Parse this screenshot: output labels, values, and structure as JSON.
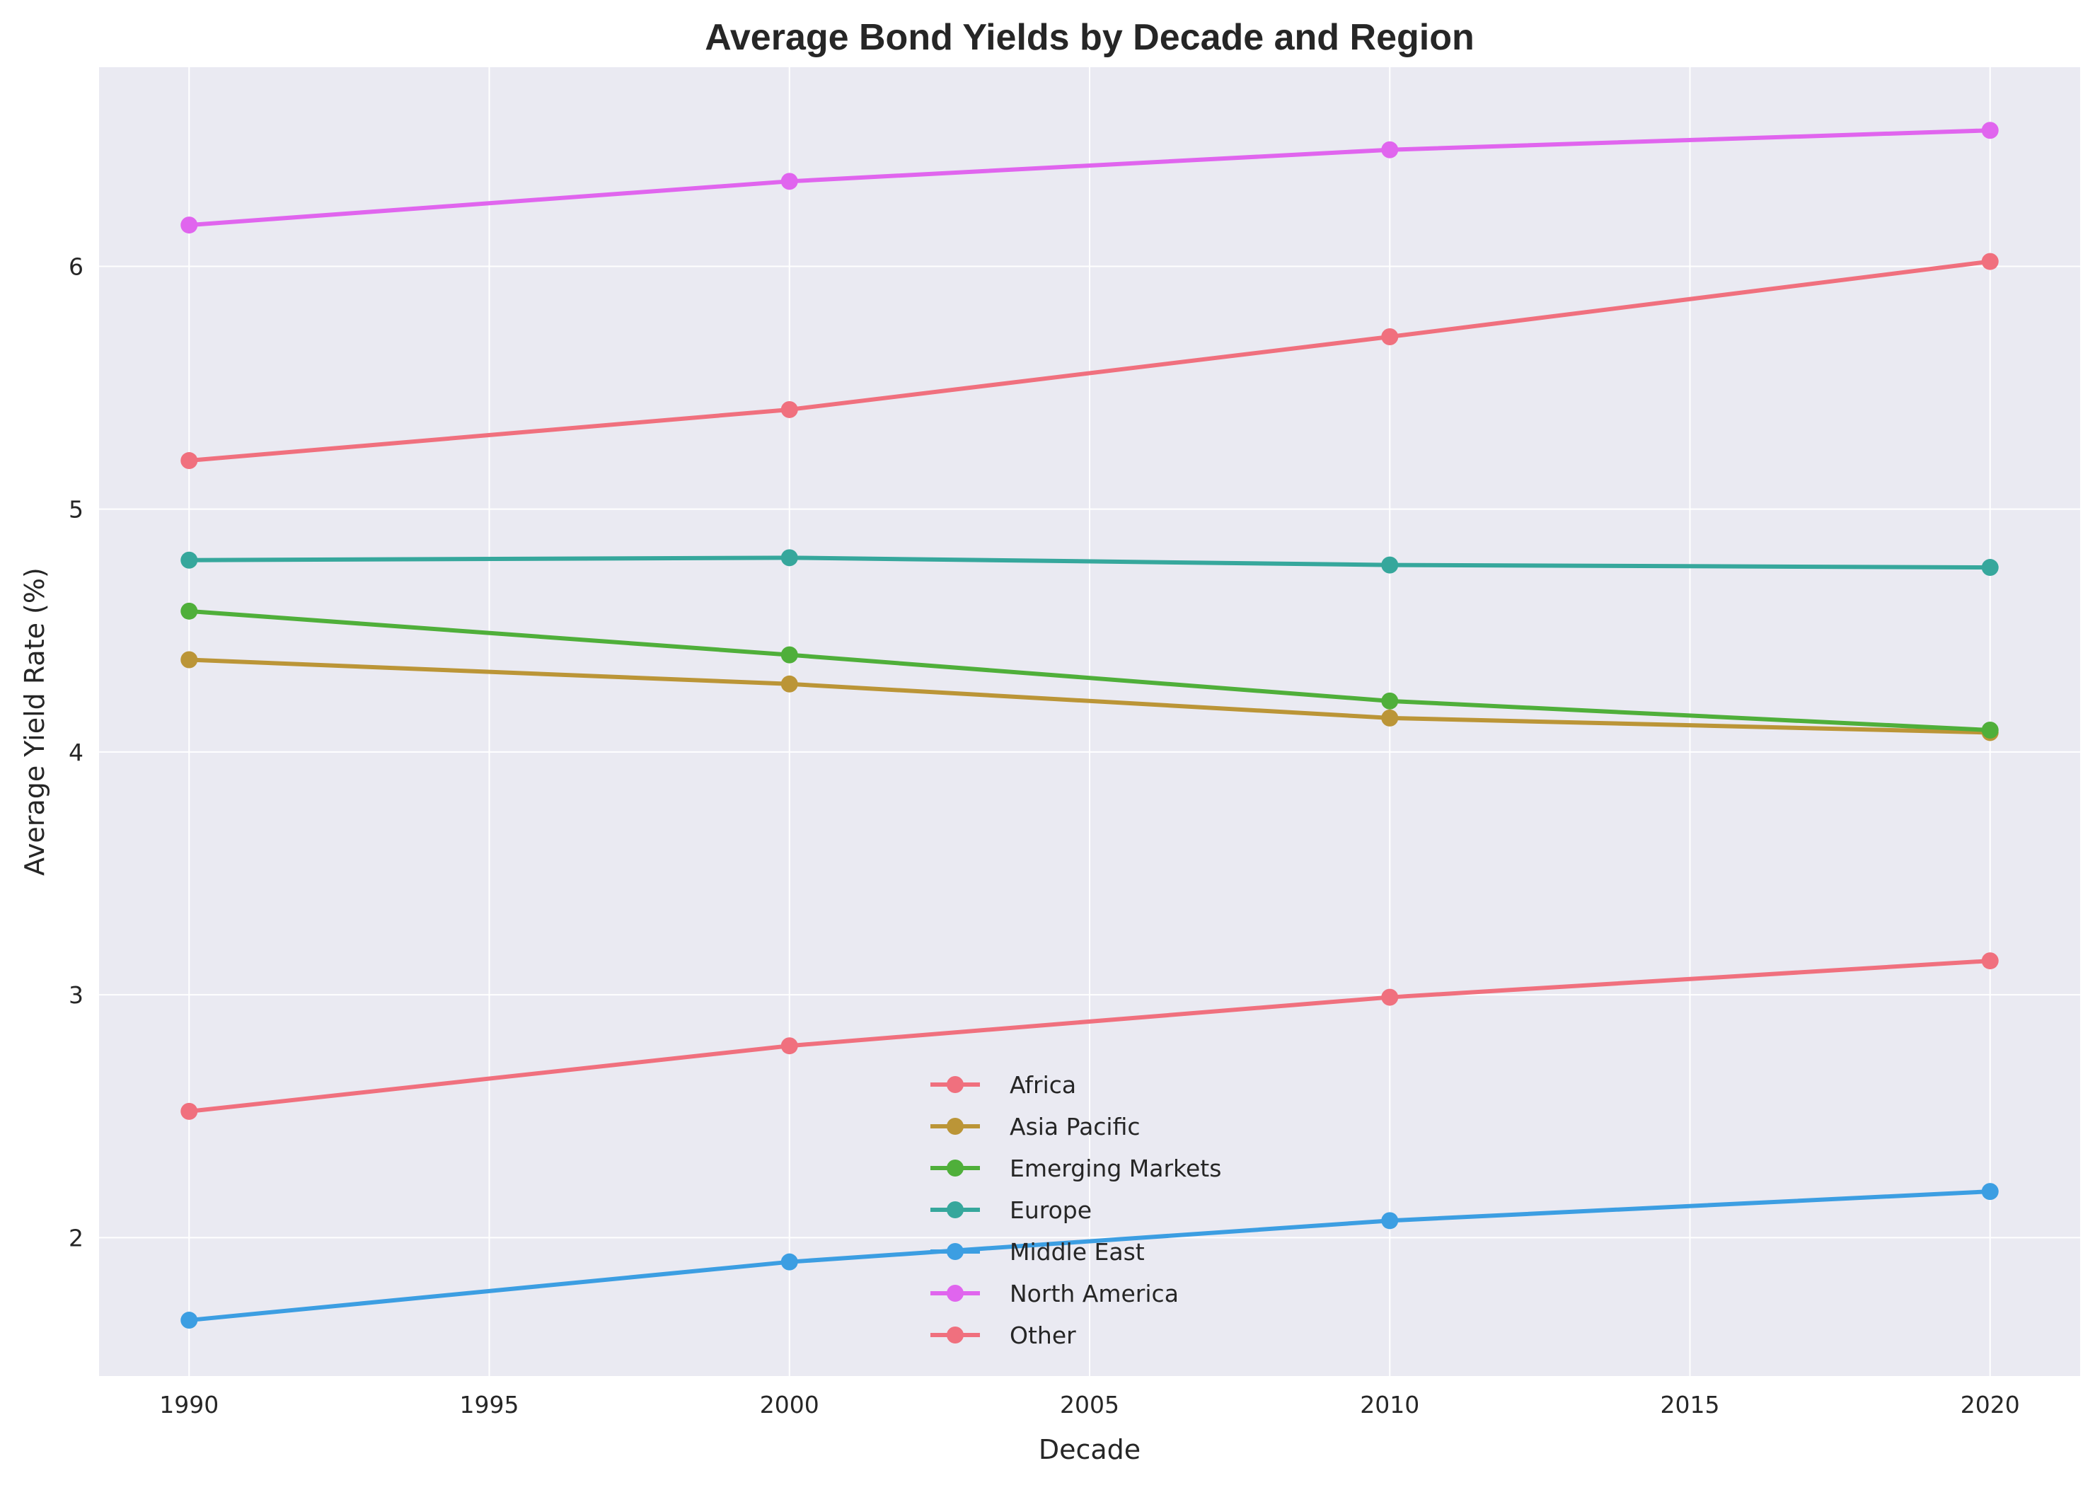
{
  "chart_data": {
    "type": "line",
    "title": "Average Bond Yields by Decade and Region",
    "xlabel": "Decade",
    "ylabel": "Average Yield Rate (%)",
    "x": [
      1990,
      2000,
      2010,
      2020
    ],
    "xlim": [
      1988.5,
      2021.5
    ],
    "ylim": [
      1.43,
      6.82
    ],
    "xticks": [
      1990,
      1995,
      2000,
      2005,
      2010,
      2015,
      2020
    ],
    "yticks": [
      2,
      3,
      4,
      5,
      6
    ],
    "grid": true,
    "legend_position": "bottom-center",
    "series": [
      {
        "name": "Africa",
        "color": "#f0707e",
        "values": [
          5.2,
          5.41,
          5.71,
          6.02
        ]
      },
      {
        "name": "Asia Pacific",
        "color": "#bb9537",
        "values": [
          4.38,
          4.28,
          4.14,
          4.08
        ]
      },
      {
        "name": "Emerging Markets",
        "color": "#4faf3a",
        "values": [
          4.58,
          4.4,
          4.21,
          4.09
        ]
      },
      {
        "name": "Europe",
        "color": "#36a79c",
        "values": [
          4.79,
          4.8,
          4.77,
          4.76
        ]
      },
      {
        "name": "Middle East",
        "color": "#3c9ee2",
        "values": [
          1.66,
          1.9,
          2.07,
          2.19
        ]
      },
      {
        "name": "North America",
        "color": "#e065ee",
        "values": [
          6.17,
          6.35,
          6.48,
          6.56
        ]
      },
      {
        "name": "Other",
        "color": "#f0707e",
        "values": [
          2.52,
          2.79,
          2.99,
          3.14
        ]
      }
    ]
  }
}
